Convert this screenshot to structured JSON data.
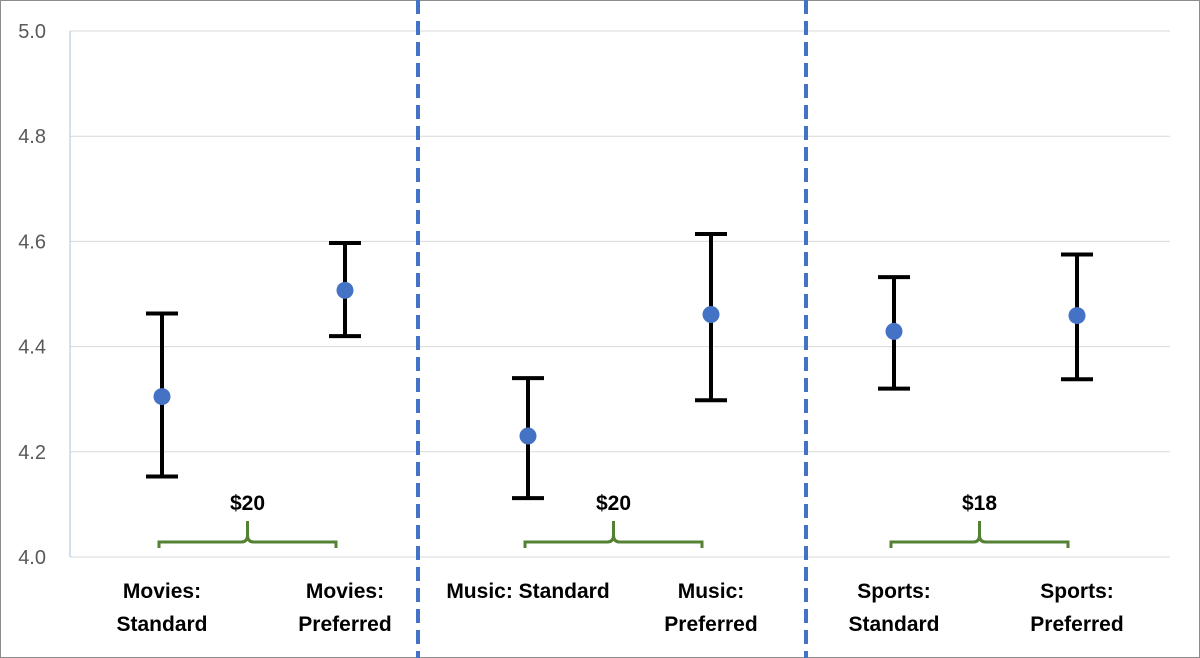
{
  "chart_data": {
    "type": "scatter",
    "title": "",
    "xlabel": "",
    "ylabel": "",
    "ylim": [
      4.0,
      5.0
    ],
    "yticks": [
      "4.0",
      "4.2",
      "4.4",
      "4.6",
      "4.8",
      "5.0"
    ],
    "grid": true,
    "categories": [
      {
        "lines": [
          "Movies:",
          "Standard"
        ],
        "mean": 4.305,
        "low": 4.153,
        "high": 4.463
      },
      {
        "lines": [
          "Movies:",
          "Preferred"
        ],
        "mean": 4.507,
        "low": 4.42,
        "high": 4.597
      },
      {
        "lines": [
          "Music: Standard"
        ],
        "mean": 4.23,
        "low": 4.112,
        "high": 4.34
      },
      {
        "lines": [
          "Music:",
          "Preferred"
        ],
        "mean": 4.461,
        "low": 4.298,
        "high": 4.614
      },
      {
        "lines": [
          "Sports:",
          "Standard"
        ],
        "mean": 4.429,
        "low": 4.32,
        "high": 4.532
      },
      {
        "lines": [
          "Sports:",
          "Preferred"
        ],
        "mean": 4.459,
        "low": 4.338,
        "high": 4.575
      }
    ],
    "group_annotations": [
      {
        "label": "$20",
        "from": 0,
        "to": 1
      },
      {
        "label": "$20",
        "from": 2,
        "to": 3
      },
      {
        "label": "$18",
        "from": 4,
        "to": 5
      }
    ],
    "separators_after": [
      1,
      3
    ],
    "colors": {
      "point": "#4472c4",
      "error_bar": "#000000",
      "separator": "#4472c4",
      "brace": "#548235",
      "grid": "#d9d9d9"
    }
  }
}
